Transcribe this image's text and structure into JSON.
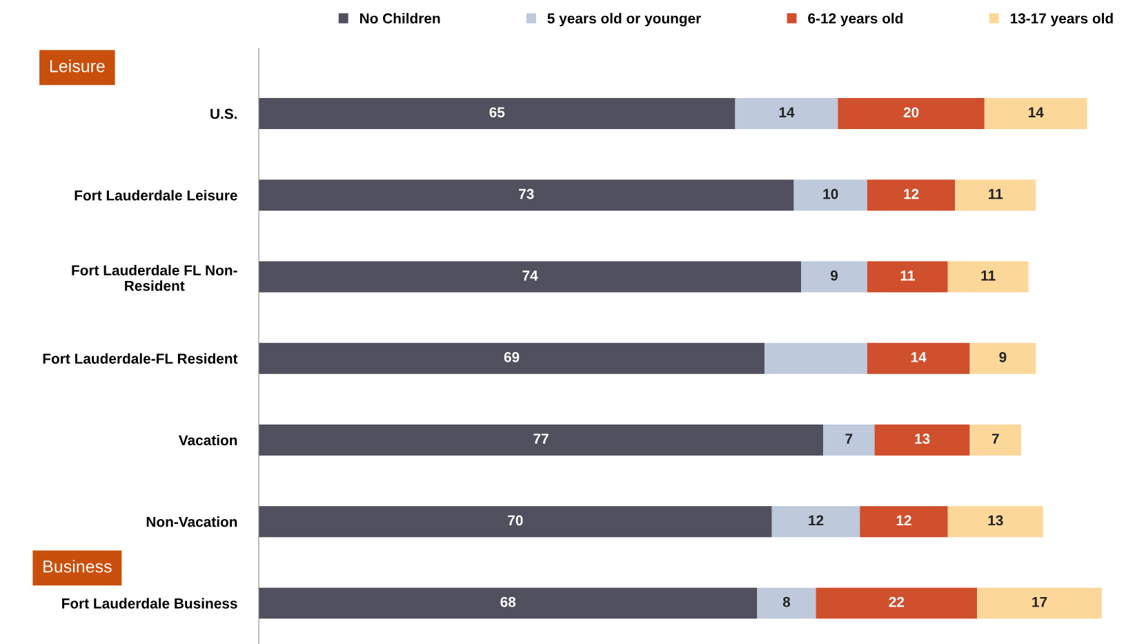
{
  "chart_data": {
    "type": "bar",
    "orientation": "horizontal",
    "stacked": true,
    "legend": "top",
    "grid": false,
    "categories": [
      "U.S.",
      "Fort Lauderdale Leisure",
      "Fort Lauderdale FL Non-Resident",
      "Fort Lauderdale-FL Resident",
      "Vacation",
      "Non-Vacation",
      "Fort Lauderdale Business"
    ],
    "series": [
      {
        "name": "No Children",
        "color": "#50505e",
        "values": [
          65,
          73,
          74,
          69,
          77,
          70,
          68
        ],
        "value_labels": [
          "65",
          "73",
          "74",
          "69",
          "77",
          "70",
          "68"
        ]
      },
      {
        "name": "5 years old or younger",
        "color": "#bfc9dc",
        "values": [
          14,
          10,
          9,
          14,
          7,
          12,
          8
        ],
        "value_labels": [
          "14",
          "10",
          "9",
          null,
          "7",
          "12",
          "8"
        ]
      },
      {
        "name": "6-12 years old",
        "color": "#d04f2c",
        "values": [
          20,
          12,
          11,
          14,
          13,
          12,
          22
        ],
        "value_labels": [
          "20",
          "12",
          "11",
          "14",
          "13",
          "12",
          "22"
        ]
      },
      {
        "name": "13-17 years old",
        "color": "#fbd89a",
        "values": [
          14,
          11,
          11,
          9,
          7,
          13,
          17
        ],
        "value_labels": [
          "14",
          "11",
          "11",
          "9",
          "7",
          "13",
          "17"
        ]
      }
    ],
    "annotations": [
      "Leisure",
      "Business"
    ]
  }
}
